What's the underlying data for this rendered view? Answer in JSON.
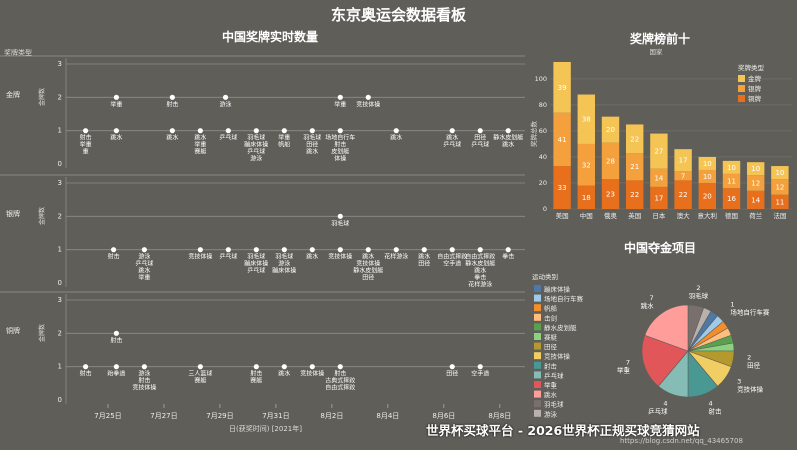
{
  "title": "东京奥运会数据看板",
  "left_panel_title": "中国奖牌实时数量",
  "top10_title": "奖牌榜前十",
  "events_title": "中国夺金项目",
  "watermark": "世界杯买球平台 - 2026世界杯正规买球竞猜网站",
  "csdn": "https://blog.csdn.net/qq_43465708",
  "colors": {
    "gold": "#f4c455",
    "silver": "#f3a03d",
    "bronze": "#e8701c"
  },
  "chart_data": [
    {
      "type": "scatter",
      "title": "中国奖牌实时数量",
      "facet_label": "奖牌类型",
      "facets": [
        "金牌",
        "银牌",
        "铜牌"
      ],
      "ylabel": "金牌数",
      "ylim": [
        0,
        3
      ],
      "yticks": [
        0,
        1,
        2,
        3
      ],
      "xlabel": "日(获奖时间) [2021年]",
      "x_ticks": [
        "7月25日",
        "7月27日",
        "7月29日",
        "7月31日",
        "8月2日",
        "8月4日",
        "8月6日",
        "8月8日"
      ],
      "tick_days": [
        25,
        27,
        29,
        31,
        33,
        35,
        37,
        39
      ],
      "points": {
        "金牌": [
          {
            "x": 24.2,
            "y": 1,
            "labels": [
              "射击",
              "举重",
              "重"
            ]
          },
          {
            "x": 25.3,
            "y": 2,
            "labels": [
              "举重"
            ]
          },
          {
            "x": 25.3,
            "y": 1,
            "labels": [
              "跳水"
            ]
          },
          {
            "x": 27.3,
            "y": 2,
            "labels": [
              "射击"
            ]
          },
          {
            "x": 27.3,
            "y": 1,
            "labels": [
              "跳水"
            ]
          },
          {
            "x": 28.3,
            "y": 1,
            "labels": [
              "跳水",
              "举重",
              "赛艇"
            ]
          },
          {
            "x": 29.2,
            "y": 2,
            "labels": [
              "游泳"
            ]
          },
          {
            "x": 29.3,
            "y": 1,
            "labels": [
              "乒乓球"
            ]
          },
          {
            "x": 30.3,
            "y": 1,
            "labels": [
              "羽毛球",
              "蹦床体操",
              "乒乓球",
              "游泳"
            ]
          },
          {
            "x": 31.3,
            "y": 1,
            "labels": [
              "举重",
              "帆船"
            ]
          },
          {
            "x": 32.3,
            "y": 1,
            "labels": [
              "羽毛球",
              "田径",
              "跳水"
            ]
          },
          {
            "x": 33.3,
            "y": 2,
            "labels": [
              "举重"
            ]
          },
          {
            "x": 33.3,
            "y": 1,
            "labels": [
              "场地自行车",
              "射击",
              "皮划艇",
              "体操"
            ]
          },
          {
            "x": 34.3,
            "y": 2,
            "labels": [
              "竞技体操"
            ]
          },
          {
            "x": 35.3,
            "y": 1,
            "labels": [
              "跳水"
            ]
          },
          {
            "x": 37.3,
            "y": 1,
            "labels": [
              "跳水",
              "乒乓球"
            ]
          },
          {
            "x": 38.3,
            "y": 1,
            "labels": [
              "田径",
              "乒乓球"
            ]
          },
          {
            "x": 39.3,
            "y": 1,
            "labels": [
              "静水皮划艇",
              "跳水"
            ]
          }
        ],
        "银牌": [
          {
            "x": 25.2,
            "y": 1,
            "labels": [
              "射击"
            ]
          },
          {
            "x": 26.3,
            "y": 1,
            "labels": [
              "游泳",
              "乒乓球",
              "跳水",
              "举重"
            ]
          },
          {
            "x": 28.3,
            "y": 1,
            "labels": [
              "竞技体操"
            ]
          },
          {
            "x": 29.3,
            "y": 1,
            "labels": [
              "乒乓球"
            ]
          },
          {
            "x": 30.3,
            "y": 1,
            "labels": [
              "羽毛球",
              "蹦床体操",
              "乒乓球"
            ]
          },
          {
            "x": 31.3,
            "y": 1,
            "labels": [
              "羽毛球",
              "游泳",
              "蹦床体操"
            ]
          },
          {
            "x": 32.3,
            "y": 1,
            "labels": [
              "跳水"
            ]
          },
          {
            "x": 33.3,
            "y": 2,
            "labels": [
              "羽毛球"
            ]
          },
          {
            "x": 33.3,
            "y": 1,
            "labels": [
              "竞技体操"
            ]
          },
          {
            "x": 34.3,
            "y": 1,
            "labels": [
              "跳水",
              "竞技体操",
              "静水皮划艇",
              "田径"
            ]
          },
          {
            "x": 35.3,
            "y": 1,
            "labels": [
              "花样游泳"
            ]
          },
          {
            "x": 36.3,
            "y": 1,
            "labels": [
              "跳水",
              "田径"
            ]
          },
          {
            "x": 37.3,
            "y": 1,
            "labels": [
              "自由式摔跤",
              "空手道"
            ]
          },
          {
            "x": 38.3,
            "y": 1,
            "labels": [
              "自由式摔跤",
              "静水皮划艇",
              "跳水",
              "拳击",
              "花样游泳"
            ]
          },
          {
            "x": 39.3,
            "y": 1,
            "labels": [
              "拳击"
            ]
          }
        ],
        "铜牌": [
          {
            "x": 24.2,
            "y": 1,
            "labels": [
              "射击"
            ]
          },
          {
            "x": 25.3,
            "y": 2,
            "labels": [
              "射击"
            ]
          },
          {
            "x": 25.3,
            "y": 1,
            "labels": [
              "跆拳道"
            ]
          },
          {
            "x": 26.3,
            "y": 1,
            "labels": [
              "游泳",
              "射击",
              "竞技体操"
            ]
          },
          {
            "x": 28.3,
            "y": 1,
            "labels": [
              "三人篮球",
              "赛艇"
            ]
          },
          {
            "x": 30.3,
            "y": 1,
            "labels": [
              "射击",
              "赛艇"
            ]
          },
          {
            "x": 31.3,
            "y": 1,
            "labels": [
              "跳水"
            ]
          },
          {
            "x": 32.3,
            "y": 1,
            "labels": [
              "竞技体操"
            ]
          },
          {
            "x": 33.3,
            "y": 1,
            "labels": [
              "射击",
              "古典式摔跤",
              "自由式摔跤"
            ]
          },
          {
            "x": 37.3,
            "y": 1,
            "labels": [
              "田径"
            ]
          },
          {
            "x": 38.3,
            "y": 1,
            "labels": [
              "空手道"
            ]
          }
        ]
      }
    },
    {
      "type": "bar",
      "title": "奖牌榜前十",
      "legend_title": "奖牌类型",
      "x_title": "国家",
      "ylabel": "奖牌总数",
      "ylim": [
        0,
        113
      ],
      "yticks": [
        0,
        20,
        40,
        60,
        80,
        100
      ],
      "categories": [
        "美国",
        "中国",
        "俄奥",
        "英国",
        "日本",
        "澳大",
        "意大利",
        "德国",
        "荷兰",
        "法国"
      ],
      "series": [
        {
          "name": "金牌",
          "color": "#f4c455",
          "values": [
            39,
            38,
            20,
            22,
            27,
            17,
            10,
            10,
            10,
            10
          ]
        },
        {
          "name": "银牌",
          "color": "#f3a03d",
          "values": [
            41,
            32,
            28,
            21,
            14,
            7,
            10,
            11,
            12,
            12
          ]
        },
        {
          "name": "铜牌",
          "color": "#e8701c",
          "values": [
            33,
            18,
            23,
            22,
            17,
            22,
            20,
            16,
            14,
            11
          ]
        }
      ]
    },
    {
      "type": "pie",
      "title": "中国夺金项目",
      "legend_title": "运动类别",
      "slices": [
        {
          "name": "蹦床体操",
          "value": 1,
          "color": "#4e79a7"
        },
        {
          "name": "场地自行车赛",
          "value": 1,
          "color": "#a0cbe8"
        },
        {
          "name": "帆船",
          "value": 1,
          "color": "#f28e2b"
        },
        {
          "name": "击剑",
          "value": 1,
          "color": "#ffbe7d"
        },
        {
          "name": "静水皮划艇",
          "value": 1,
          "color": "#59a14f"
        },
        {
          "name": "赛艇",
          "value": 1,
          "color": "#8cd17d"
        },
        {
          "name": "田径",
          "value": 2,
          "color": "#b6992d"
        },
        {
          "name": "竞技体操",
          "value": 3,
          "color": "#f1ce63"
        },
        {
          "name": "射击",
          "value": 4,
          "color": "#499894"
        },
        {
          "name": "乒乓球",
          "value": 4,
          "color": "#86bcb6"
        },
        {
          "name": "举重",
          "value": 7,
          "color": "#e15759"
        },
        {
          "name": "跳水",
          "value": 7,
          "color": "#ff9d9a"
        },
        {
          "name": "羽毛球",
          "value": 2,
          "color": "#79706e"
        },
        {
          "name": "游泳",
          "value": 1,
          "color": "#bab0ac"
        }
      ]
    }
  ]
}
